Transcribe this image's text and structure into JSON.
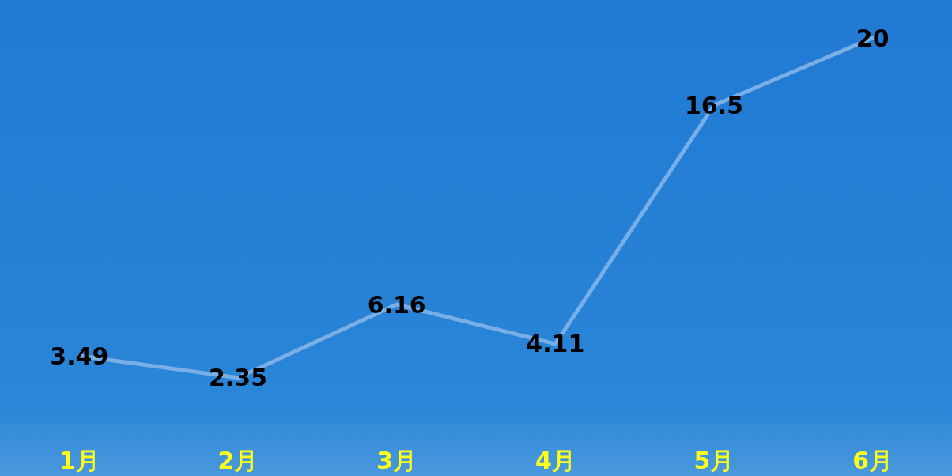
{
  "chart_data": {
    "type": "line",
    "categories": [
      "1月",
      "2月",
      "3月",
      "4月",
      "5月",
      "6月"
    ],
    "series": [
      {
        "color": "#79aee6",
        "values": [
          3.49,
          2.35,
          6.16,
          4.11,
          16.5,
          20
        ]
      }
    ],
    "tick_labels": "x",
    "data_labels": true,
    "marker": "none",
    "line_style": "solid"
  }
}
